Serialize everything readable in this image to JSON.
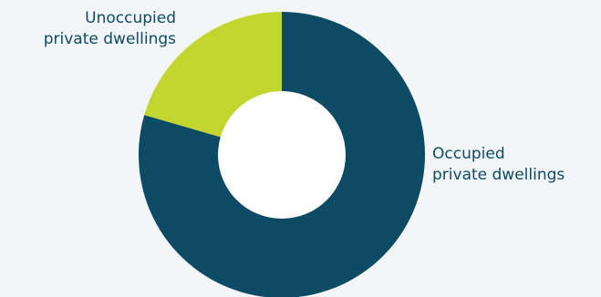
{
  "chart_data": {
    "type": "pie",
    "variant": "donut",
    "title": "",
    "legend": false,
    "slices": [
      {
        "label_lines": [
          "Occupied",
          "private dwellings"
        ],
        "value": 79.5,
        "color": "#0d4a63"
      },
      {
        "label_lines": [
          "Unoccupied",
          "private dwellings"
        ],
        "value": 20.5,
        "color": "#c2d62f"
      }
    ]
  },
  "colors": {
    "background": "#f3f6f8",
    "label_text": "#0d4a63",
    "hole": "#ffffff"
  }
}
